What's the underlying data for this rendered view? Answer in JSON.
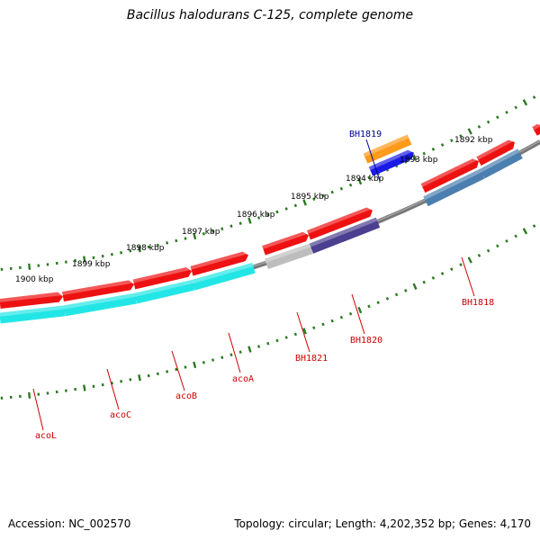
{
  "title": "Bacillus halodurans C-125, complete genome",
  "footer": {
    "accession": "Accession: NC_002570",
    "stats": "Topology: circular; Length: 4,202,352 bp; Genes: 4,170"
  },
  "colors": {
    "backbone": "#777777",
    "ticks": "#2a7a1f",
    "gene_red": "#ee1111",
    "cog_cyan": "#22e6e6",
    "cog_steel": "#4a7fb0",
    "cog_purple": "#4b3f8f",
    "cog_gray": "#bdbdbd",
    "cog_orange": "#ff9a1a",
    "cog_blue": "#1a1ae6",
    "label_red": "#cc0000",
    "label_blue": "#000099"
  },
  "scale_labels": [
    "1900 kbp",
    "1899 kbp",
    "1898 kbp",
    "1897 kbp",
    "1896 kbp",
    "1895 kbp",
    "1894 kbp",
    "1893 kbp",
    "1892 kbp"
  ],
  "genes": [
    {
      "label": "acoL",
      "color": "label_red"
    },
    {
      "label": "acoC",
      "color": "label_red"
    },
    {
      "label": "acoB",
      "color": "label_red"
    },
    {
      "label": "acoA",
      "color": "label_red"
    },
    {
      "label": "BH1821",
      "color": "label_red"
    },
    {
      "label": "BH1820",
      "color": "label_red"
    },
    {
      "label": "BH1819",
      "color": "label_blue"
    },
    {
      "label": "BH1818",
      "color": "label_red"
    }
  ]
}
